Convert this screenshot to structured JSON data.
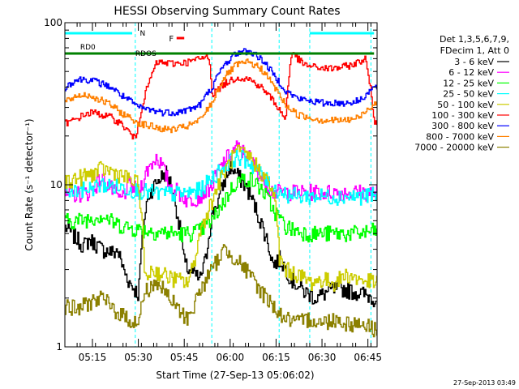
{
  "chart_data": {
    "type": "line",
    "title": "HESSI Observing Summary Count Rates",
    "xlabel": "Start Time (27-Sep-13 05:06:02)",
    "ylabel": "Count Rate (s⁻¹ detector⁻¹)",
    "y_scale": "log",
    "ylim": [
      1,
      100
    ],
    "xlim_minutes_after_0506": [
      0,
      102
    ],
    "y_ticks": [
      "1",
      "10",
      "100"
    ],
    "x_ticks": [
      "05:15",
      "05:30",
      "05:45",
      "06:00",
      "06:15",
      "06:30",
      "06:45"
    ],
    "x_tick_minutes": [
      9,
      24,
      39,
      54,
      69,
      84,
      99
    ],
    "legend_header": [
      "Det 1,3,5,6,7,9,",
      "FDecim 1, Att 0"
    ],
    "series": [
      {
        "name": "3 - 6 keV",
        "color": "#000000",
        "x": [
          0,
          3,
          6,
          8,
          12,
          16,
          17,
          19,
          21,
          24,
          27,
          30,
          33,
          35,
          37,
          39,
          42,
          44,
          46,
          48,
          50,
          52,
          54,
          57,
          60,
          63,
          66,
          68,
          70,
          74,
          78,
          82,
          86,
          90,
          94,
          98,
          101
        ],
        "y": [
          5.5,
          4.8,
          4.2,
          4.6,
          4.0,
          3.8,
          4.0,
          3.0,
          2.5,
          2.1,
          8.5,
          10.5,
          12.0,
          9.5,
          6.0,
          3.2,
          2.8,
          2.6,
          3.5,
          6.5,
          8.0,
          10.5,
          13.0,
          11.0,
          9.0,
          6.5,
          4.5,
          3.2,
          3.5,
          2.6,
          2.2,
          2.0,
          2.2,
          2.3,
          2.2,
          2.1,
          2.0
        ]
      },
      {
        "name": "6 - 12 keV",
        "color": "#ff00ff",
        "x": [
          0,
          4,
          8,
          12,
          16,
          18,
          21,
          24,
          27,
          30,
          34,
          37,
          40,
          44,
          48,
          52,
          56,
          60,
          64,
          68,
          70,
          74,
          78,
          82,
          86,
          90,
          94,
          98,
          101
        ],
        "y": [
          8.5,
          8.8,
          9.0,
          11.0,
          9.0,
          8.0,
          10.0,
          9.0,
          12.5,
          15.0,
          10.0,
          9.0,
          8.0,
          8.5,
          10.0,
          14.0,
          17.0,
          15.0,
          11.0,
          9.0,
          9.0,
          9.0,
          9.0,
          9.0,
          9.0,
          9.0,
          9.0,
          9.0,
          9.0
        ]
      },
      {
        "name": "12 - 25 keV",
        "color": "#00ff00",
        "x": [
          0,
          4,
          8,
          12,
          16,
          20,
          24,
          28,
          32,
          36,
          40,
          44,
          48,
          52,
          56,
          60,
          64,
          68,
          72,
          76,
          80,
          84,
          88,
          92,
          96,
          101
        ],
        "y": [
          6.0,
          6.0,
          6.2,
          6.5,
          5.8,
          5.5,
          5.3,
          5.2,
          5.1,
          5.0,
          5.0,
          5.2,
          6.0,
          8.0,
          10.5,
          11.0,
          9.5,
          7.0,
          5.5,
          5.2,
          5.0,
          5.0,
          5.0,
          5.0,
          5.0,
          5.2
        ]
      },
      {
        "name": "25 - 50 keV",
        "color": "#00ffff",
        "x": [
          0,
          4,
          8,
          12,
          16,
          20,
          24,
          28,
          32,
          36,
          40,
          44,
          48,
          52,
          56,
          60,
          64,
          68,
          72,
          76,
          80,
          84,
          88,
          92,
          96,
          101
        ],
        "y": [
          9.0,
          9.2,
          9.5,
          10.0,
          9.8,
          9.5,
          9.2,
          9.0,
          8.8,
          8.8,
          8.9,
          9.3,
          11.0,
          13.0,
          15.0,
          14.0,
          11.5,
          9.5,
          8.8,
          8.5,
          8.5,
          8.5,
          8.5,
          8.5,
          8.5,
          8.6
        ]
      },
      {
        "name": "50 - 100 keV",
        "color": "#cccc00",
        "x": [
          0,
          4,
          8,
          12,
          16,
          20,
          24,
          26,
          28,
          32,
          36,
          40,
          42,
          44,
          48,
          52,
          56,
          60,
          64,
          68,
          70,
          72,
          76,
          80,
          84,
          88,
          92,
          96,
          101
        ],
        "y": [
          10.5,
          11.0,
          11.5,
          12.5,
          12.0,
          11.0,
          10.0,
          2.5,
          3.0,
          2.8,
          2.6,
          2.5,
          3.2,
          5.0,
          8.0,
          12.0,
          16.0,
          15.0,
          12.0,
          9.0,
          3.5,
          3.0,
          2.8,
          2.5,
          2.6,
          2.5,
          2.8,
          2.6,
          2.5
        ]
      },
      {
        "name": "100 - 300 keV",
        "color": "#ff0000",
        "x": [
          0,
          3,
          6,
          9,
          12,
          15,
          18,
          21,
          23,
          30,
          35,
          40,
          44,
          47,
          48,
          52,
          56,
          60,
          64,
          68,
          72,
          74,
          78,
          82,
          86,
          90,
          94,
          98,
          101
        ],
        "y": [
          24,
          25,
          27,
          28,
          27,
          26,
          24,
          21,
          19,
          57,
          56,
          57,
          60,
          62,
          36,
          42,
          46,
          45,
          40,
          33,
          25,
          65,
          55,
          53,
          52,
          53,
          55,
          60,
          24
        ]
      },
      {
        "name": "300 - 800 keV",
        "color": "#0000ff",
        "x": [
          0,
          3,
          6,
          9,
          12,
          15,
          18,
          21,
          24,
          28,
          32,
          36,
          40,
          44,
          48,
          52,
          56,
          60,
          64,
          68,
          72,
          76,
          80,
          84,
          88,
          92,
          96,
          101
        ],
        "y": [
          40,
          44,
          45,
          44,
          42,
          40,
          36,
          33,
          30,
          29,
          28,
          28,
          29,
          31,
          40,
          55,
          65,
          67,
          60,
          48,
          38,
          34,
          33,
          32,
          32,
          32,
          33,
          40
        ]
      },
      {
        "name": "800 - 7000 keV",
        "color": "#ff8000",
        "x": [
          0,
          3,
          6,
          9,
          12,
          15,
          18,
          21,
          24,
          28,
          32,
          36,
          40,
          44,
          48,
          52,
          56,
          60,
          64,
          68,
          72,
          76,
          80,
          84,
          88,
          92,
          96,
          101
        ],
        "y": [
          32,
          35,
          36,
          35,
          33,
          31,
          28,
          26,
          24,
          23,
          22,
          22,
          23,
          25,
          32,
          46,
          55,
          57,
          52,
          41,
          31,
          27,
          26,
          25,
          25,
          25,
          26,
          32
        ]
      },
      {
        "name": "7000 - 20000 keV",
        "color": "#8b8000",
        "x": [
          0,
          4,
          8,
          12,
          16,
          20,
          24,
          26,
          30,
          34,
          38,
          40,
          42,
          44,
          48,
          52,
          56,
          60,
          64,
          68,
          70,
          72,
          76,
          80,
          84,
          88,
          92,
          96,
          101
        ],
        "y": [
          1.8,
          1.7,
          1.9,
          2.0,
          1.7,
          1.5,
          1.4,
          2.2,
          2.5,
          2.0,
          1.6,
          1.5,
          1.8,
          2.2,
          3.0,
          4.0,
          3.5,
          2.8,
          2.2,
          1.8,
          1.6,
          1.5,
          1.4,
          1.5,
          1.4,
          1.5,
          1.4,
          1.4,
          1.3
        ]
      }
    ],
    "annotations": {
      "rd0_label": "RD0",
      "rdos_label": "RDOS",
      "n_label": "N",
      "f_label": "F",
      "n_color": "#00ffff",
      "rd_color": "#008000",
      "f_color": "#ff0000",
      "n_bar_minutes": [
        [
          0,
          22
        ],
        [
          80,
          101
        ]
      ],
      "rd_bar_minutes": [
        [
          0,
          101
        ]
      ],
      "vertical_marker_minutes": [
        23,
        48,
        70,
        80,
        100
      ]
    },
    "grid": false,
    "legend_position": "right"
  },
  "footer": {
    "timestamp": "27-Sep-2013 03:49"
  }
}
